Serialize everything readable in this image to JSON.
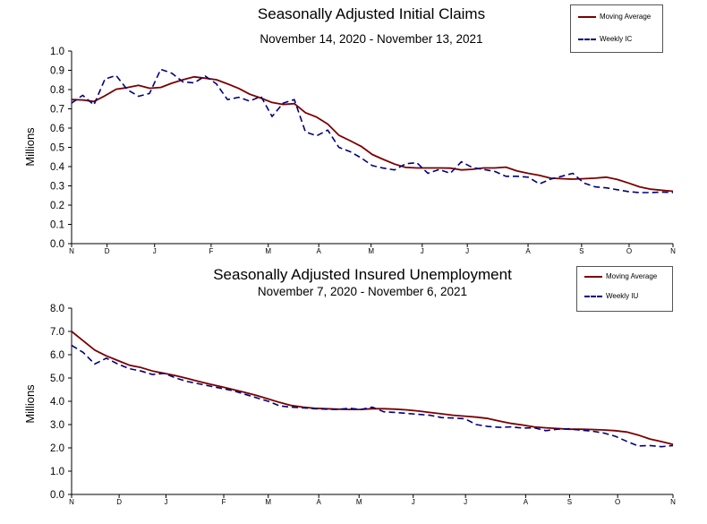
{
  "chart_data": [
    {
      "type": "line",
      "title": "Seasonally Adjusted Initial Claims",
      "subtitle": "November 14, 2020 - November 13, 2021",
      "ylabel": "Millions",
      "xlabel": "",
      "ylim": [
        0.0,
        1.0
      ],
      "yticks": [
        "0.0",
        "0.1",
        "0.2",
        "0.3",
        "0.4",
        "0.5",
        "0.6",
        "0.7",
        "0.8",
        "0.9",
        "1.0"
      ],
      "xticks": [
        "N",
        "D",
        "J",
        "F",
        "M",
        "A",
        "M",
        "J",
        "J",
        "A",
        "S",
        "O",
        "N"
      ],
      "grid": "none",
      "legend_position": "top-right",
      "series": [
        {
          "name": "Moving Average",
          "style": "solid",
          "color": "#7a0000",
          "values": [
            0.748,
            0.746,
            0.738,
            0.768,
            0.802,
            0.81,
            0.822,
            0.807,
            0.811,
            0.833,
            0.851,
            0.866,
            0.859,
            0.851,
            0.83,
            0.806,
            0.776,
            0.756,
            0.733,
            0.723,
            0.727,
            0.68,
            0.657,
            0.621,
            0.563,
            0.535,
            0.505,
            0.463,
            0.437,
            0.413,
            0.396,
            0.393,
            0.393,
            0.393,
            0.392,
            0.383,
            0.386,
            0.393,
            0.393,
            0.397,
            0.377,
            0.365,
            0.355,
            0.34,
            0.337,
            0.335,
            0.337,
            0.34,
            0.345,
            0.333,
            0.315,
            0.295,
            0.283,
            0.277,
            0.272
          ]
        },
        {
          "name": "Weekly IC",
          "style": "dashed",
          "color": "#00007f",
          "values": [
            0.73,
            0.77,
            0.72,
            0.855,
            0.873,
            0.8,
            0.765,
            0.78,
            0.905,
            0.885,
            0.84,
            0.835,
            0.87,
            0.83,
            0.748,
            0.76,
            0.74,
            0.765,
            0.66,
            0.73,
            0.748,
            0.58,
            0.56,
            0.59,
            0.5,
            0.478,
            0.445,
            0.405,
            0.392,
            0.383,
            0.415,
            0.42,
            0.365,
            0.385,
            0.365,
            0.425,
            0.395,
            0.385,
            0.375,
            0.35,
            0.35,
            0.345,
            0.31,
            0.335,
            0.35,
            0.365,
            0.315,
            0.295,
            0.29,
            0.28,
            0.27,
            0.265,
            0.265,
            0.268,
            0.265
          ]
        }
      ]
    },
    {
      "type": "line",
      "title": "Seasonally Adjusted Insured Unemployment",
      "subtitle": "November 7, 2020 - November 6, 2021",
      "ylabel": "Millions",
      "xlabel": "",
      "ylim": [
        0.0,
        8.0
      ],
      "yticks": [
        "0.0",
        "1.0",
        "2.0",
        "3.0",
        "4.0",
        "5.0",
        "6.0",
        "7.0",
        "8.0"
      ],
      "xticks": [
        "N",
        "D",
        "J",
        "F",
        "M",
        "A",
        "M",
        "J",
        "J",
        "A",
        "S",
        "O",
        "N"
      ],
      "grid": "none",
      "legend_position": "top-right",
      "series": [
        {
          "name": "Moving Average",
          "style": "solid",
          "color": "#7a0000",
          "values": [
            7.0,
            6.6,
            6.2,
            5.95,
            5.75,
            5.55,
            5.45,
            5.3,
            5.2,
            5.1,
            4.98,
            4.85,
            4.73,
            4.62,
            4.5,
            4.38,
            4.25,
            4.1,
            3.95,
            3.82,
            3.75,
            3.7,
            3.68,
            3.66,
            3.65,
            3.65,
            3.68,
            3.68,
            3.66,
            3.63,
            3.58,
            3.52,
            3.46,
            3.4,
            3.36,
            3.32,
            3.26,
            3.15,
            3.05,
            2.98,
            2.9,
            2.86,
            2.83,
            2.8,
            2.8,
            2.79,
            2.77,
            2.74,
            2.68,
            2.55,
            2.38,
            2.27,
            2.15
          ]
        },
        {
          "name": "Weekly IU",
          "style": "dashed",
          "color": "#00007f",
          "values": [
            6.4,
            6.1,
            5.6,
            5.85,
            5.6,
            5.4,
            5.3,
            5.15,
            5.2,
            5.0,
            4.85,
            4.75,
            4.65,
            4.55,
            4.45,
            4.3,
            4.15,
            4.0,
            3.8,
            3.75,
            3.72,
            3.68,
            3.66,
            3.65,
            3.7,
            3.65,
            3.75,
            3.55,
            3.52,
            3.48,
            3.44,
            3.4,
            3.3,
            3.28,
            3.25,
            3.0,
            2.92,
            2.88,
            2.9,
            2.85,
            2.86,
            2.74,
            2.8,
            2.82,
            2.76,
            2.72,
            2.64,
            2.5,
            2.28,
            2.08,
            2.1,
            2.05,
            2.1
          ]
        }
      ]
    }
  ]
}
